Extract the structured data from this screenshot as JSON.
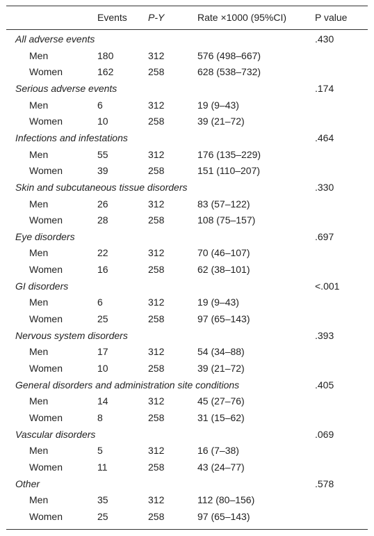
{
  "header": {
    "events": "Events",
    "py": "P-Y",
    "rate": "Rate ×1000 (95%CI)",
    "p": "P value"
  },
  "groups": [
    {
      "title": "All adverse events",
      "p": ".430",
      "rows": [
        {
          "label": "Men",
          "events": "180",
          "py": "312",
          "rate": "576 (498–667)"
        },
        {
          "label": "Women",
          "events": "162",
          "py": "258",
          "rate": "628 (538–732)"
        }
      ]
    },
    {
      "title": "Serious adverse events",
      "p": ".174",
      "rows": [
        {
          "label": "Men",
          "events": "6",
          "py": "312",
          "rate": "19 (9–43)"
        },
        {
          "label": "Women",
          "events": "10",
          "py": "258",
          "rate": "39 (21–72)"
        }
      ]
    },
    {
      "title": "Infections and infestations",
      "p": ".464",
      "rows": [
        {
          "label": "Men",
          "events": "55",
          "py": "312",
          "rate": "176 (135–229)"
        },
        {
          "label": "Women",
          "events": "39",
          "py": "258",
          "rate": "151 (110–207)"
        }
      ]
    },
    {
      "title": "Skin and subcutaneous tissue disorders",
      "p": ".330",
      "rows": [
        {
          "label": "Men",
          "events": "26",
          "py": "312",
          "rate": "83 (57–122)"
        },
        {
          "label": "Women",
          "events": "28",
          "py": "258",
          "rate": "108 (75–157)"
        }
      ]
    },
    {
      "title": "Eye disorders",
      "p": ".697",
      "rows": [
        {
          "label": "Men",
          "events": "22",
          "py": "312",
          "rate": "70 (46–107)"
        },
        {
          "label": "Women",
          "events": "16",
          "py": "258",
          "rate": "62 (38–101)"
        }
      ]
    },
    {
      "title": "GI disorders",
      "p": "<.001",
      "rows": [
        {
          "label": "Men",
          "events": "6",
          "py": "312",
          "rate": "19 (9–43)"
        },
        {
          "label": "Women",
          "events": "25",
          "py": "258",
          "rate": "97 (65–143)"
        }
      ]
    },
    {
      "title": "Nervous system disorders",
      "p": ".393",
      "rows": [
        {
          "label": "Men",
          "events": "17",
          "py": "312",
          "rate": "54 (34–88)"
        },
        {
          "label": "Women",
          "events": "10",
          "py": "258",
          "rate": "39 (21–72)"
        }
      ]
    },
    {
      "title": "General disorders and administration site conditions",
      "p": ".405",
      "rows": [
        {
          "label": "Men",
          "events": "14",
          "py": "312",
          "rate": "45 (27–76)"
        },
        {
          "label": "Women",
          "events": "8",
          "py": "258",
          "rate": "31 (15–62)"
        }
      ]
    },
    {
      "title": "Vascular disorders",
      "p": ".069",
      "rows": [
        {
          "label": "Men",
          "events": "5",
          "py": "312",
          "rate": "16 (7–38)"
        },
        {
          "label": "Women",
          "events": "11",
          "py": "258",
          "rate": "43 (24–77)"
        }
      ]
    },
    {
      "title": "Other",
      "p": ".578",
      "rows": [
        {
          "label": "Men",
          "events": "35",
          "py": "312",
          "rate": "112 (80–156)"
        },
        {
          "label": "Women",
          "events": "25",
          "py": "258",
          "rate": "97 (65–143)"
        }
      ]
    }
  ]
}
